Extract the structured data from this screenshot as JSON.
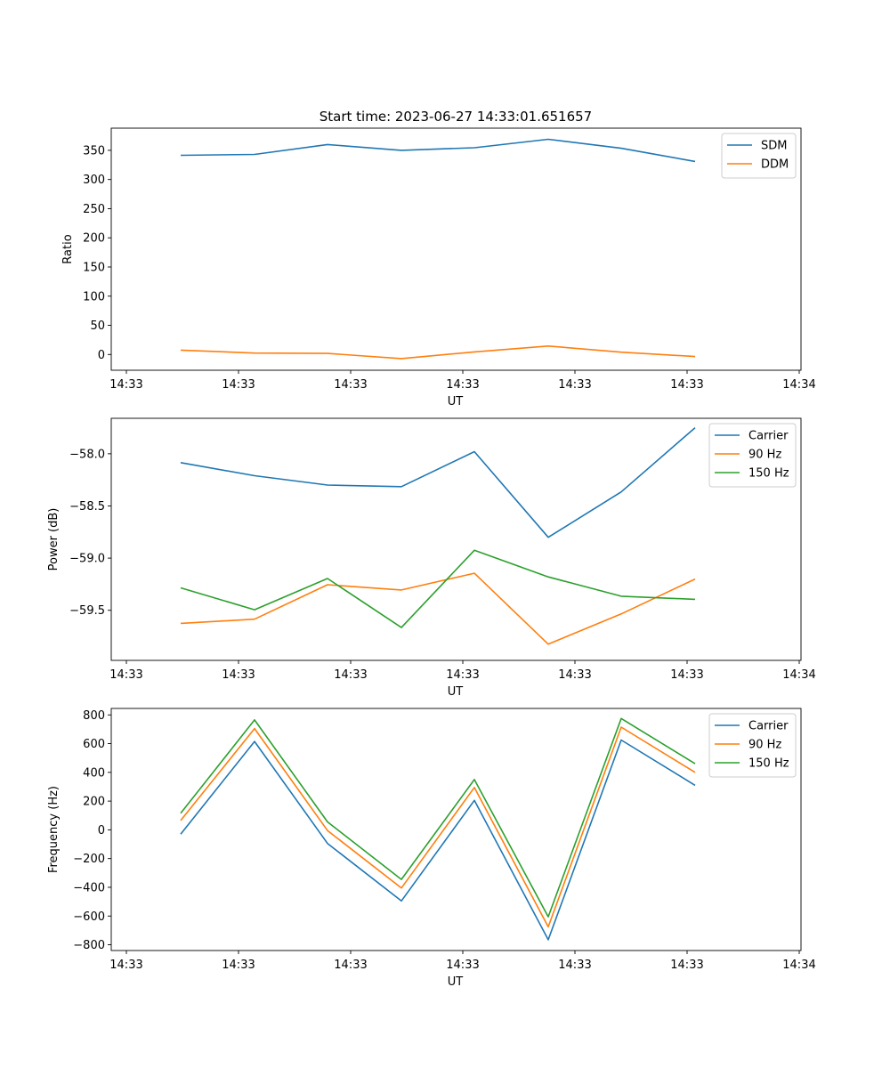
{
  "figure": {
    "title": "Start time: 2023-06-27 14:33:01.651657"
  },
  "chart_data": [
    {
      "type": "line",
      "title": "Start time: 2023-06-27 14:33:01.651657",
      "xlabel": "UT",
      "ylabel": "Ratio",
      "x_ticks": [
        "14:33",
        "14:33",
        "14:33",
        "14:33",
        "14:33",
        "14:33",
        "14:34"
      ],
      "y_ticks": [
        0,
        50,
        100,
        150,
        200,
        250,
        300,
        350
      ],
      "ylim": [
        -27,
        388
      ],
      "grid": false,
      "legend": "top-right",
      "series": [
        {
          "name": "SDM",
          "color": "#1f77b4",
          "values": [
            341.5,
            343,
            360,
            350,
            354.5,
            369,
            353.5,
            331
          ]
        },
        {
          "name": "DDM",
          "color": "#ff7f0e",
          "values": [
            7.5,
            2.5,
            1.8,
            -7,
            4.5,
            14.5,
            4,
            -3.5
          ]
        }
      ]
    },
    {
      "type": "line",
      "xlabel": "UT",
      "ylabel": "Power (dB)",
      "x_ticks": [
        "14:33",
        "14:33",
        "14:33",
        "14:33",
        "14:33",
        "14:33",
        "14:34"
      ],
      "y_ticks": [
        -58.0,
        -58.5,
        -59.0,
        -59.5
      ],
      "y_tick_labels": [
        "−58.0",
        "−58.5",
        "−59.0",
        "−59.5"
      ],
      "ylim": [
        -59.98,
        -57.66
      ],
      "grid": false,
      "legend": "top-right",
      "series": [
        {
          "name": "Carrier",
          "color": "#1f77b4",
          "values": [
            -58.085,
            -58.21,
            -58.3,
            -58.315,
            -57.98,
            -58.8,
            -58.365,
            -57.75
          ]
        },
        {
          "name": "90 Hz",
          "color": "#ff7f0e",
          "values": [
            -59.625,
            -59.585,
            -59.255,
            -59.305,
            -59.145,
            -59.825,
            -59.535,
            -59.2
          ]
        },
        {
          "name": "150 Hz",
          "color": "#2ca02c",
          "values": [
            -59.285,
            -59.495,
            -59.195,
            -59.665,
            -58.925,
            -59.18,
            -59.365,
            -59.395
          ]
        }
      ]
    },
    {
      "type": "line",
      "xlabel": "UT",
      "ylabel": "Frequency (Hz)",
      "x_ticks": [
        "14:33",
        "14:33",
        "14:33",
        "14:33",
        "14:33",
        "14:33",
        "14:34"
      ],
      "y_ticks": [
        800,
        600,
        400,
        200,
        0,
        -200,
        -400,
        -600,
        -800
      ],
      "y_tick_labels": [
        "800",
        "600",
        "400",
        "200",
        "0",
        "−200",
        "−400",
        "−600",
        "−800"
      ],
      "ylim": [
        -840,
        845
      ],
      "grid": false,
      "legend": "top-right",
      "series": [
        {
          "name": "Carrier",
          "color": "#1f77b4",
          "values": [
            -30,
            615,
            -95,
            -495,
            205,
            -765,
            625,
            310
          ]
        },
        {
          "name": "90 Hz",
          "color": "#ff7f0e",
          "values": [
            65,
            705,
            -5,
            -405,
            295,
            -675,
            715,
            400
          ]
        },
        {
          "name": "150 Hz",
          "color": "#2ca02c",
          "values": [
            115,
            765,
            55,
            -345,
            350,
            -605,
            775,
            460
          ]
        }
      ]
    }
  ]
}
